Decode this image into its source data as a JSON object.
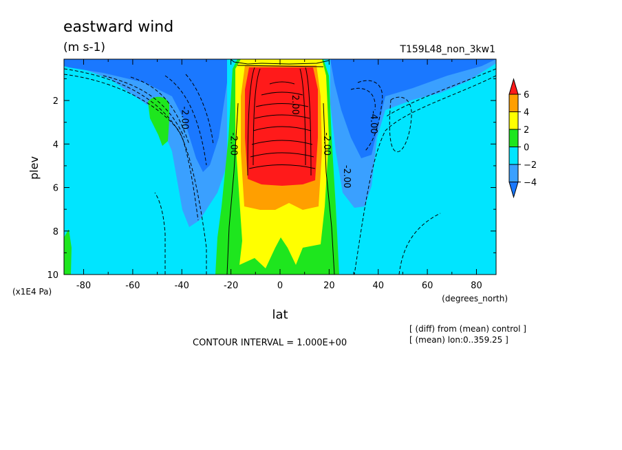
{
  "chart_data": {
    "type": "contour",
    "title": "eastward wind",
    "units": "(m s-1)",
    "run_label": "T159L48_non_3kw1",
    "xlabel": "lat",
    "x_units": "(degrees_north)",
    "ylabel": "plev",
    "y_units": "(x1E4 Pa)",
    "xlim": [
      -88,
      88
    ],
    "ylim": [
      0.1,
      10
    ],
    "y_inverted": true,
    "x_ticks": [
      -80,
      -60,
      -40,
      -20,
      0,
      20,
      40,
      60,
      80
    ],
    "y_ticks": [
      2,
      4,
      6,
      8,
      10
    ],
    "contour_interval_text": "CONTOUR INTERVAL = 1.000E+00",
    "notes": [
      "[ (diff) from (mean) control ]",
      "[ (mean) lon:0..359.25 ]"
    ],
    "colorbar": {
      "tick_labels": [
        "6",
        "4",
        "2",
        "0",
        "−2",
        "−4"
      ],
      "levels": [
        -6,
        -4,
        -2,
        0,
        2,
        4,
        6
      ],
      "colors": [
        "#1a78ff",
        "#3aa0ff",
        "#00e5ff",
        "#1ee61e",
        "#ffff00",
        "#ff9f00",
        "#ff1a1a"
      ]
    },
    "contour_labels": [
      {
        "text": "-2.00",
        "lat": -40,
        "plev": 2.8
      },
      {
        "text": "-2.00",
        "lat": -20,
        "plev": 4.0
      },
      {
        "text": "-2.00",
        "lat": 18,
        "plev": 4.0
      },
      {
        "text": "2.00",
        "lat": 5,
        "plev": 2.2
      },
      {
        "text": "-4.00",
        "lat": 37,
        "plev": 3.0
      },
      {
        "text": "-2.00",
        "lat": 26,
        "plev": 5.5
      }
    ],
    "features": [
      {
        "name": "equatorial westerly maximum",
        "value_gt": 6,
        "lat": 5,
        "plev": 1.5
      },
      {
        "name": "southern easterly jet",
        "value_lt": -4,
        "lat": -30,
        "plev": 1.5
      },
      {
        "name": "northern easterly jet",
        "value_lt": -4,
        "lat": 33,
        "plev": 1.5
      },
      {
        "name": "positive patch",
        "value_range": [
          0,
          2
        ],
        "lat": -52,
        "plev": 3.0
      }
    ]
  }
}
